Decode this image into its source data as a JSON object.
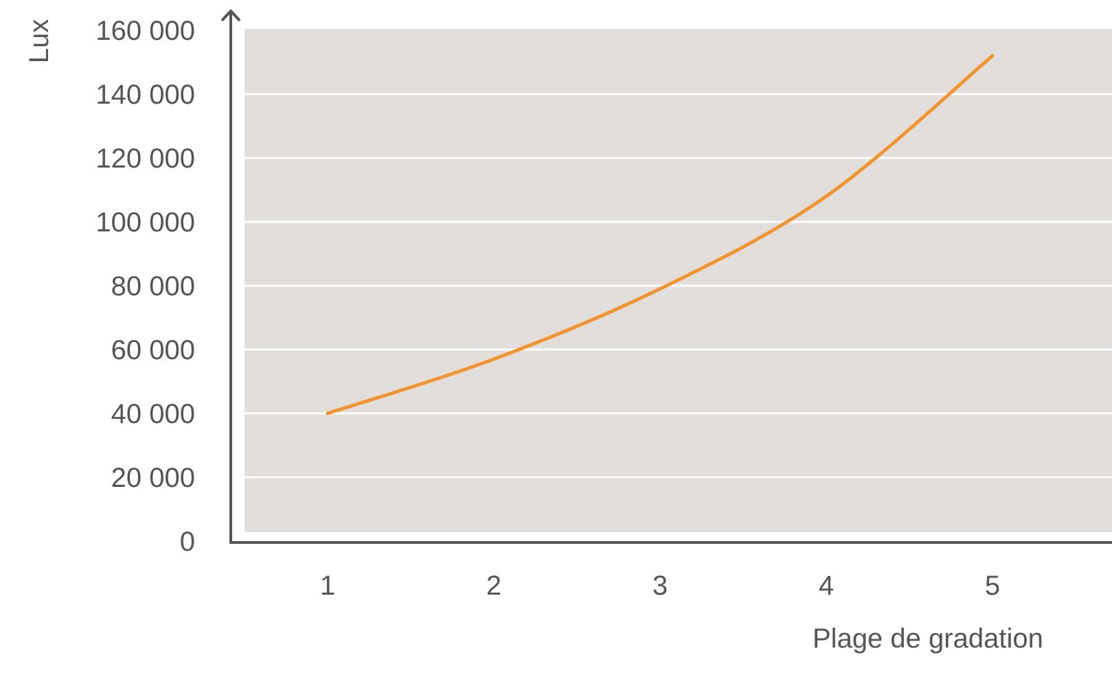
{
  "chart_data": {
    "type": "line",
    "xlabel": "Plage de gradation",
    "ylabel": "Lux",
    "x_ticks": [
      "1",
      "2",
      "3",
      "4",
      "5"
    ],
    "y_ticks": [
      "0",
      "20 000",
      "40 000",
      "60 000",
      "80 000",
      "100 000",
      "120 000",
      "140 000",
      "160 000"
    ],
    "xlim": [
      0.5,
      5.5
    ],
    "ylim": [
      0,
      160000
    ],
    "grid": true,
    "series": [
      {
        "x": [
          1,
          2,
          3,
          4,
          5
        ],
        "values": [
          40000,
          57000,
          79000,
          108000,
          152000
        ]
      }
    ],
    "colors": {
      "line": "#f29430",
      "plot_background": "#e2dedb",
      "gridline": "#ffffff",
      "axis": "#555555",
      "text": "#555555"
    }
  }
}
